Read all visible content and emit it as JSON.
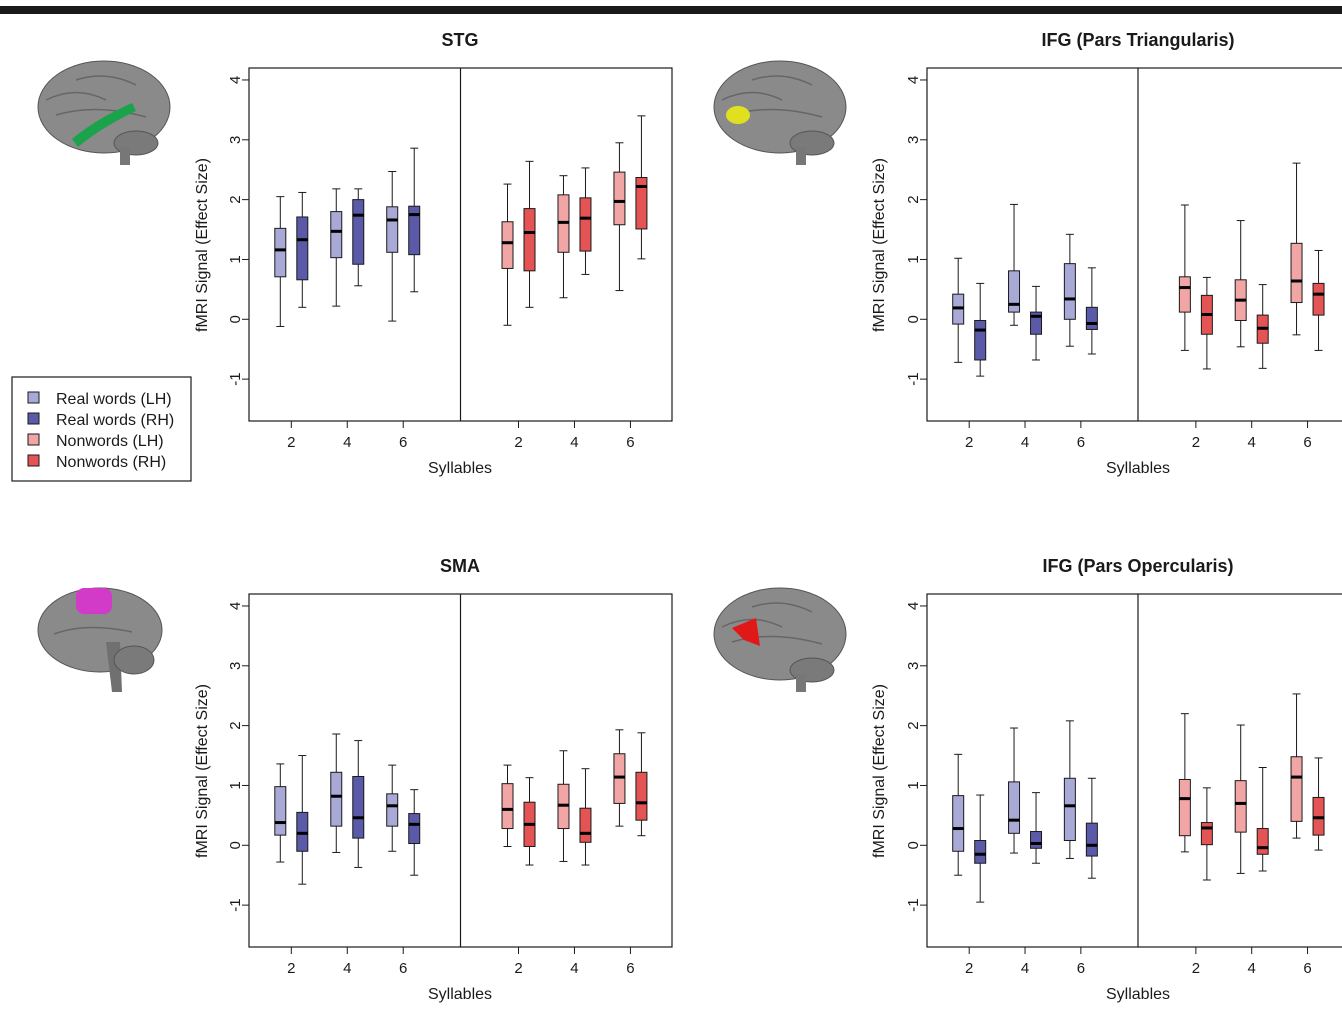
{
  "figure": {
    "legend": [
      {
        "label": "Real words (LH)",
        "color": "#a9a9d8"
      },
      {
        "label": "Real words (RH)",
        "color": "#5a5aa8"
      },
      {
        "label": "Nonwords (LH)",
        "color": "#f2a5a5"
      },
      {
        "label": "Nonwords (RH)",
        "color": "#e45454"
      }
    ],
    "brain_icons": [
      {
        "name": "brain-stg-icon",
        "highlight": "#1aa34a"
      },
      {
        "name": "brain-ifg-tri-icon",
        "highlight": "#e0e020"
      },
      {
        "name": "brain-sma-icon",
        "highlight": "#d23ac8"
      },
      {
        "name": "brain-ifg-oper-icon",
        "highlight": "#e01818"
      }
    ]
  },
  "chart_data": [
    {
      "type": "boxplot",
      "title": "STG",
      "xlabel": "Syllables",
      "ylabel": "fMRI Signal (Effect Size)",
      "ylim": [
        -1.7,
        4.2
      ],
      "y_ticks": [
        -1,
        0,
        1,
        2,
        3,
        4
      ],
      "x_ticks": [
        "2",
        "4",
        "6",
        "2",
        "4",
        "6"
      ],
      "series_colors": [
        "#a9a9d8",
        "#5a5aa8",
        "#f2a5a5",
        "#e45454"
      ],
      "boxes": [
        {
          "group": 0,
          "series": 0,
          "min": -0.12,
          "q1": 0.71,
          "median": 1.16,
          "q3": 1.52,
          "max": 2.05
        },
        {
          "group": 0,
          "series": 1,
          "min": 0.2,
          "q1": 0.66,
          "median": 1.33,
          "q3": 1.71,
          "max": 2.12
        },
        {
          "group": 1,
          "series": 0,
          "min": 0.22,
          "q1": 1.03,
          "median": 1.47,
          "q3": 1.8,
          "max": 2.18
        },
        {
          "group": 1,
          "series": 1,
          "min": 0.56,
          "q1": 0.92,
          "median": 1.74,
          "q3": 2.0,
          "max": 2.18
        },
        {
          "group": 2,
          "series": 0,
          "min": -0.03,
          "q1": 1.12,
          "median": 1.66,
          "q3": 1.88,
          "max": 2.47
        },
        {
          "group": 2,
          "series": 1,
          "min": 0.46,
          "q1": 1.08,
          "median": 1.75,
          "q3": 1.89,
          "max": 2.86
        },
        {
          "group": 3,
          "series": 2,
          "min": -0.1,
          "q1": 0.85,
          "median": 1.28,
          "q3": 1.63,
          "max": 2.26
        },
        {
          "group": 3,
          "series": 3,
          "min": 0.2,
          "q1": 0.81,
          "median": 1.45,
          "q3": 1.85,
          "max": 2.64
        },
        {
          "group": 4,
          "series": 2,
          "min": 0.36,
          "q1": 1.12,
          "median": 1.62,
          "q3": 2.08,
          "max": 2.4
        },
        {
          "group": 4,
          "series": 3,
          "min": 0.75,
          "q1": 1.14,
          "median": 1.69,
          "q3": 2.03,
          "max": 2.53
        },
        {
          "group": 5,
          "series": 2,
          "min": 0.48,
          "q1": 1.58,
          "median": 1.97,
          "q3": 2.46,
          "max": 2.95
        },
        {
          "group": 5,
          "series": 3,
          "min": 1.01,
          "q1": 1.51,
          "median": 2.22,
          "q3": 2.37,
          "max": 3.4
        }
      ]
    },
    {
      "type": "boxplot",
      "title": "IFG (Pars Triangularis)",
      "xlabel": "Syllables",
      "ylabel": "fMRI Signal (Effect Size)",
      "ylim": [
        -1.7,
        4.2
      ],
      "y_ticks": [
        -1,
        0,
        1,
        2,
        3,
        4
      ],
      "x_ticks": [
        "2",
        "4",
        "6",
        "2",
        "4",
        "6"
      ],
      "series_colors": [
        "#a9a9d8",
        "#5a5aa8",
        "#f2a5a5",
        "#e45454"
      ],
      "boxes": [
        {
          "group": 0,
          "series": 0,
          "min": -0.72,
          "q1": -0.08,
          "median": 0.19,
          "q3": 0.42,
          "max": 1.02
        },
        {
          "group": 0,
          "series": 1,
          "min": -0.95,
          "q1": -0.68,
          "median": -0.18,
          "q3": -0.02,
          "max": 0.6
        },
        {
          "group": 1,
          "series": 0,
          "min": -0.1,
          "q1": 0.12,
          "median": 0.25,
          "q3": 0.81,
          "max": 1.92
        },
        {
          "group": 1,
          "series": 1,
          "min": -0.68,
          "q1": -0.25,
          "median": 0.05,
          "q3": 0.12,
          "max": 0.55
        },
        {
          "group": 2,
          "series": 0,
          "min": -0.45,
          "q1": 0.0,
          "median": 0.34,
          "q3": 0.93,
          "max": 1.42
        },
        {
          "group": 2,
          "series": 1,
          "min": -0.58,
          "q1": -0.17,
          "median": -0.07,
          "q3": 0.2,
          "max": 0.86
        },
        {
          "group": 3,
          "series": 2,
          "min": -0.52,
          "q1": 0.12,
          "median": 0.53,
          "q3": 0.71,
          "max": 1.91
        },
        {
          "group": 3,
          "series": 3,
          "min": -0.83,
          "q1": -0.25,
          "median": 0.08,
          "q3": 0.4,
          "max": 0.7
        },
        {
          "group": 4,
          "series": 2,
          "min": -0.46,
          "q1": -0.02,
          "median": 0.32,
          "q3": 0.66,
          "max": 1.65
        },
        {
          "group": 4,
          "series": 3,
          "min": -0.82,
          "q1": -0.4,
          "median": -0.15,
          "q3": 0.07,
          "max": 0.58
        },
        {
          "group": 5,
          "series": 2,
          "min": -0.26,
          "q1": 0.28,
          "median": 0.64,
          "q3": 1.27,
          "max": 2.61
        },
        {
          "group": 5,
          "series": 3,
          "min": -0.52,
          "q1": 0.07,
          "median": 0.42,
          "q3": 0.6,
          "max": 1.15
        }
      ]
    },
    {
      "type": "boxplot",
      "title": "SMA",
      "xlabel": "Syllables",
      "ylabel": "fMRI Signal (Effect Size)",
      "ylim": [
        -1.7,
        4.2
      ],
      "y_ticks": [
        -1,
        0,
        1,
        2,
        3,
        4
      ],
      "x_ticks": [
        "2",
        "4",
        "6",
        "2",
        "4",
        "6"
      ],
      "series_colors": [
        "#a9a9d8",
        "#5a5aa8",
        "#f2a5a5",
        "#e45454"
      ],
      "boxes": [
        {
          "group": 0,
          "series": 0,
          "min": -0.28,
          "q1": 0.17,
          "median": 0.38,
          "q3": 0.98,
          "max": 1.36
        },
        {
          "group": 0,
          "series": 1,
          "min": -0.65,
          "q1": -0.1,
          "median": 0.2,
          "q3": 0.55,
          "max": 1.5
        },
        {
          "group": 1,
          "series": 0,
          "min": -0.12,
          "q1": 0.32,
          "median": 0.82,
          "q3": 1.22,
          "max": 1.86
        },
        {
          "group": 1,
          "series": 1,
          "min": -0.37,
          "q1": 0.12,
          "median": 0.46,
          "q3": 1.15,
          "max": 1.75
        },
        {
          "group": 2,
          "series": 0,
          "min": -0.1,
          "q1": 0.32,
          "median": 0.66,
          "q3": 0.86,
          "max": 1.34
        },
        {
          "group": 2,
          "series": 1,
          "min": -0.5,
          "q1": 0.03,
          "median": 0.35,
          "q3": 0.53,
          "max": 0.93
        },
        {
          "group": 3,
          "series": 2,
          "min": -0.02,
          "q1": 0.28,
          "median": 0.6,
          "q3": 1.03,
          "max": 1.34
        },
        {
          "group": 3,
          "series": 3,
          "min": -0.33,
          "q1": -0.02,
          "median": 0.35,
          "q3": 0.72,
          "max": 1.13
        },
        {
          "group": 4,
          "series": 2,
          "min": -0.27,
          "q1": 0.28,
          "median": 0.67,
          "q3": 1.02,
          "max": 1.58
        },
        {
          "group": 4,
          "series": 3,
          "min": -0.33,
          "q1": 0.05,
          "median": 0.2,
          "q3": 0.62,
          "max": 1.28
        },
        {
          "group": 5,
          "series": 2,
          "min": 0.32,
          "q1": 0.7,
          "median": 1.14,
          "q3": 1.53,
          "max": 1.93
        },
        {
          "group": 5,
          "series": 3,
          "min": 0.16,
          "q1": 0.42,
          "median": 0.71,
          "q3": 1.22,
          "max": 1.88
        }
      ]
    },
    {
      "type": "boxplot",
      "title": "IFG (Pars Opercularis)",
      "xlabel": "Syllables",
      "ylabel": "fMRI Signal (Effect Size)",
      "ylim": [
        -1.7,
        4.2
      ],
      "y_ticks": [
        -1,
        0,
        1,
        2,
        3,
        4
      ],
      "x_ticks": [
        "2",
        "4",
        "6",
        "2",
        "4",
        "6"
      ],
      "series_colors": [
        "#a9a9d8",
        "#5a5aa8",
        "#f2a5a5",
        "#e45454"
      ],
      "boxes": [
        {
          "group": 0,
          "series": 0,
          "min": -0.5,
          "q1": -0.1,
          "median": 0.28,
          "q3": 0.83,
          "max": 1.52
        },
        {
          "group": 0,
          "series": 1,
          "min": -0.95,
          "q1": -0.3,
          "median": -0.15,
          "q3": 0.08,
          "max": 0.84
        },
        {
          "group": 1,
          "series": 0,
          "min": -0.13,
          "q1": 0.2,
          "median": 0.42,
          "q3": 1.06,
          "max": 1.96
        },
        {
          "group": 1,
          "series": 1,
          "min": -0.3,
          "q1": -0.05,
          "median": 0.03,
          "q3": 0.23,
          "max": 0.88
        },
        {
          "group": 2,
          "series": 0,
          "min": -0.22,
          "q1": 0.08,
          "median": 0.66,
          "q3": 1.12,
          "max": 2.08
        },
        {
          "group": 2,
          "series": 1,
          "min": -0.55,
          "q1": -0.18,
          "median": 0.0,
          "q3": 0.37,
          "max": 1.12
        },
        {
          "group": 3,
          "series": 2,
          "min": -0.11,
          "q1": 0.16,
          "median": 0.78,
          "q3": 1.1,
          "max": 2.2
        },
        {
          "group": 3,
          "series": 3,
          "min": -0.58,
          "q1": 0.01,
          "median": 0.29,
          "q3": 0.38,
          "max": 0.96
        },
        {
          "group": 4,
          "series": 2,
          "min": -0.47,
          "q1": 0.22,
          "median": 0.7,
          "q3": 1.08,
          "max": 2.01
        },
        {
          "group": 4,
          "series": 3,
          "min": -0.43,
          "q1": -0.15,
          "median": -0.04,
          "q3": 0.28,
          "max": 1.3
        },
        {
          "group": 5,
          "series": 2,
          "min": 0.12,
          "q1": 0.4,
          "median": 1.14,
          "q3": 1.48,
          "max": 2.53
        },
        {
          "group": 5,
          "series": 3,
          "min": -0.08,
          "q1": 0.17,
          "median": 0.46,
          "q3": 0.8,
          "max": 1.46
        }
      ]
    }
  ]
}
